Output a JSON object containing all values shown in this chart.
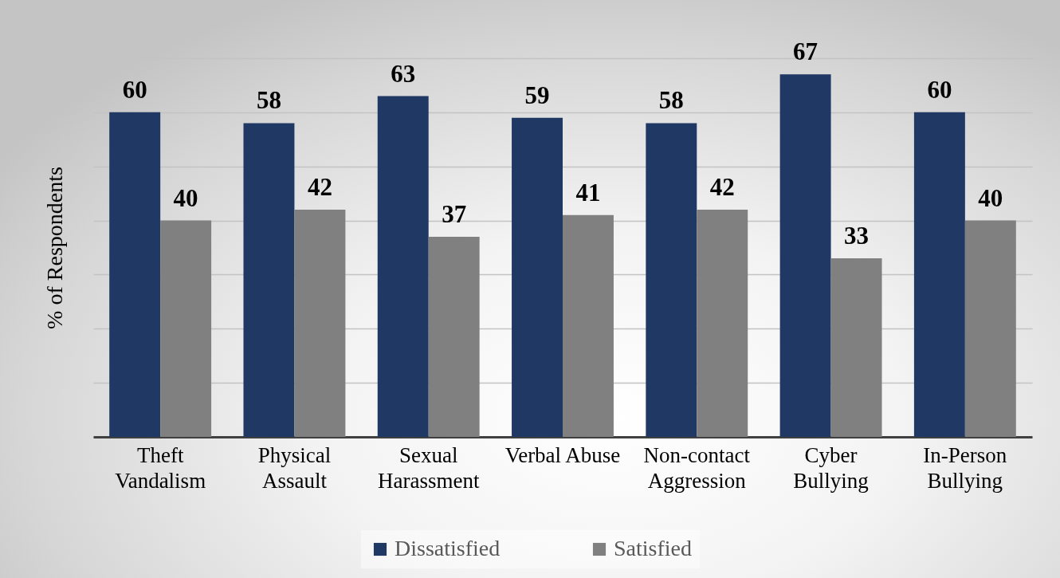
{
  "chart_data": {
    "type": "bar",
    "ylabel": "% of Respondents",
    "categories": [
      "Theft Vandalism",
      "Physical Assault",
      "Sexual Harassment",
      "Verbal Abuse",
      "Non-contact Aggression",
      "Cyber Bullying",
      "In-Person Bullying"
    ],
    "series": [
      {
        "name": "Dissatisfied",
        "color": "#203864",
        "values": [
          60,
          58,
          63,
          59,
          58,
          67,
          60
        ]
      },
      {
        "name": "Satisfied",
        "color": "#808080",
        "values": [
          40,
          42,
          37,
          41,
          42,
          33,
          40
        ]
      }
    ],
    "ylim": [
      0,
      70
    ],
    "yticks": [
      {
        "value": 0,
        "label": null
      },
      {
        "value": 10,
        "label": null
      },
      {
        "value": 20,
        "label": null
      },
      {
        "value": 30,
        "label": null
      },
      {
        "value": 40,
        "label": null
      },
      {
        "value": 50,
        "label": null
      },
      {
        "value": 60,
        "label": null
      },
      {
        "value": 70,
        "label": null
      }
    ],
    "tick_labels": "x",
    "grid": "y",
    "legend": "bottom",
    "data_labels": true
  }
}
